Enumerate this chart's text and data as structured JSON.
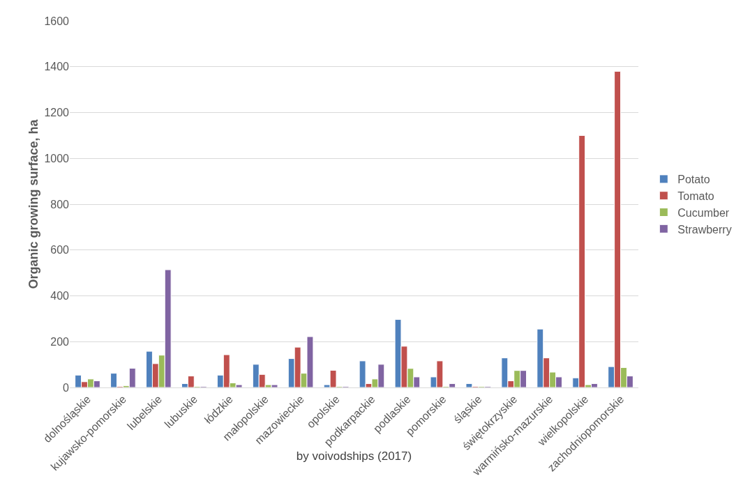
{
  "chart_data": {
    "type": "bar",
    "xlabel": "by voivodships (2017)",
    "ylabel": "Organic growing surface, ha",
    "categories": [
      "dolnośląskie",
      "kujawsko-pomorskie",
      "lubelskie",
      "lubuskie",
      "łódzkie",
      "małopolskie",
      "mazowieckie",
      "opolskie",
      "podkarpackie",
      "podlaskie",
      "pomorskie",
      "śląskie",
      "świętokrzyskie",
      "warmińsko-mazurskie",
      "wielkopolskie",
      "zachodniopomorskie"
    ],
    "series": [
      {
        "name": "Potato",
        "color": "#4f81bd",
        "values": [
          54,
          62,
          158,
          17,
          54,
          101,
          126,
          12,
          116,
          297,
          46,
          17,
          129,
          255,
          42,
          91
        ]
      },
      {
        "name": "Tomato",
        "color": "#c0504d",
        "values": [
          25,
          5,
          104,
          50,
          143,
          57,
          176,
          75,
          17,
          180,
          116,
          5,
          29,
          129,
          1100,
          1380
        ]
      },
      {
        "name": "Cucumber",
        "color": "#9bbb59",
        "values": [
          37,
          8,
          141,
          5,
          20,
          12,
          62,
          5,
          37,
          83,
          5,
          5,
          74,
          67,
          12,
          87
        ]
      },
      {
        "name": "Strawberry",
        "color": "#8064a2",
        "values": [
          29,
          84,
          514,
          5,
          12,
          12,
          222,
          5,
          101,
          46,
          17,
          5,
          74,
          46,
          17,
          50
        ]
      }
    ],
    "ylim": [
      0,
      1600
    ],
    "yticks": [
      0,
      200,
      400,
      600,
      800,
      1000,
      1200,
      1400,
      1600
    ],
    "grid": "y",
    "legend": "right"
  }
}
